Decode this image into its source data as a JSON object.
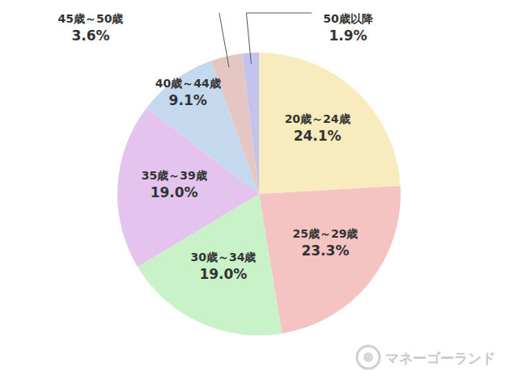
{
  "chart_data": {
    "type": "pie",
    "categories": [
      "20歳～24歳",
      "25歳～29歳",
      "30歳～34歳",
      "35歳～39歳",
      "40歳～44歳",
      "45歳～50歳",
      "50歳以降"
    ],
    "values": [
      24.1,
      23.3,
      19.0,
      19.0,
      9.1,
      3.6,
      1.9
    ],
    "value_labels": [
      "24.1%",
      "23.3%",
      "19.0%",
      "19.0%",
      "9.1%",
      "3.6%",
      "1.9%"
    ],
    "colors": [
      "#f8ecbf",
      "#f6c3c3",
      "#c9f2c8",
      "#e4c3ef",
      "#c4d8ee",
      "#e6c6c3",
      "#c4c3ee"
    ],
    "data_labels": true,
    "annotations": [
      "マネーゴーランド"
    ]
  }
}
